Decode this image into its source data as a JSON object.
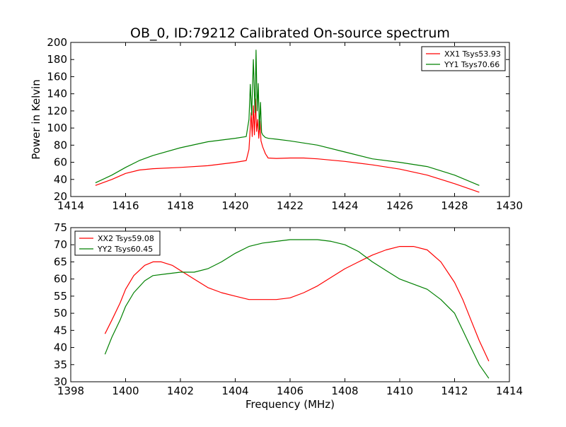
{
  "figure": {
    "title": "OB_0, ID:79212 Calibrated On-source spectrum",
    "xlabel": "Frequency (MHz)",
    "colors": {
      "red": "#ff0000",
      "green": "#008000",
      "axis": "#000000",
      "background": "#ffffff"
    }
  },
  "chart_data": [
    {
      "type": "line",
      "title": "OB_0, ID:79212 Calibrated On-source spectrum",
      "xlabel": "",
      "ylabel": "Power in Kelvin",
      "xlim": [
        1414,
        1430
      ],
      "ylim": [
        20,
        200
      ],
      "xticks": [
        1414,
        1416,
        1418,
        1420,
        1422,
        1424,
        1426,
        1428,
        1430
      ],
      "yticks": [
        20,
        40,
        60,
        80,
        100,
        120,
        140,
        160,
        180,
        200
      ],
      "grid": false,
      "legend": "top-right",
      "series": [
        {
          "name": "XX1 Tsys53.93",
          "color": "#ff0000",
          "x": [
            1414.9,
            1415.5,
            1416.0,
            1416.5,
            1417.0,
            1418.0,
            1419.0,
            1420.0,
            1420.4,
            1420.5,
            1420.58,
            1420.62,
            1420.66,
            1420.7,
            1420.74,
            1420.78,
            1420.82,
            1420.86,
            1420.9,
            1420.94,
            1421.0,
            1421.1,
            1421.2,
            1421.5,
            1422.0,
            1422.5,
            1423.0,
            1424.0,
            1425.0,
            1426.0,
            1427.0,
            1428.0,
            1428.9
          ],
          "y": [
            33,
            40,
            47,
            51,
            52.5,
            54,
            56,
            60,
            62,
            75,
            118,
            90,
            126,
            92,
            134,
            96,
            110,
            88,
            108,
            85,
            78,
            70,
            65,
            64.5,
            65,
            65,
            64,
            61,
            57,
            52,
            45,
            35,
            25
          ]
        },
        {
          "name": "YY1 Tsys70.66",
          "color": "#008000",
          "x": [
            1414.9,
            1415.5,
            1416.0,
            1416.5,
            1417.0,
            1418.0,
            1419.0,
            1420.0,
            1420.4,
            1420.5,
            1420.55,
            1420.6,
            1420.66,
            1420.72,
            1420.76,
            1420.8,
            1420.84,
            1420.88,
            1420.92,
            1420.96,
            1421.0,
            1421.1,
            1421.2,
            1421.5,
            1422.0,
            1423.0,
            1424.0,
            1425.0,
            1426.0,
            1427.0,
            1428.0,
            1428.9
          ],
          "y": [
            36,
            45,
            54,
            62,
            68,
            77,
            84,
            88,
            90,
            110,
            151,
            115,
            180,
            118,
            191,
            120,
            152,
            98,
            130,
            95,
            92,
            89,
            88,
            87,
            85,
            80,
            72,
            64,
            60,
            55,
            45,
            33
          ]
        }
      ]
    },
    {
      "type": "line",
      "title": "",
      "xlabel": "Frequency (MHz)",
      "ylabel": "",
      "xlim": [
        1398,
        1414
      ],
      "ylim": [
        30,
        75
      ],
      "xticks": [
        1398,
        1400,
        1402,
        1404,
        1406,
        1408,
        1410,
        1412,
        1414
      ],
      "yticks": [
        30,
        35,
        40,
        45,
        50,
        55,
        60,
        65,
        70,
        75
      ],
      "grid": false,
      "legend": "top-left",
      "series": [
        {
          "name": "XX2 Tsys59.08",
          "color": "#ff0000",
          "x": [
            1399.25,
            1399.5,
            1399.8,
            1400.0,
            1400.3,
            1400.7,
            1401.0,
            1401.3,
            1401.7,
            1402.0,
            1402.5,
            1403.0,
            1403.5,
            1404.0,
            1404.5,
            1405.0,
            1405.5,
            1406.0,
            1406.5,
            1407.0,
            1407.5,
            1408.0,
            1408.5,
            1409.0,
            1409.5,
            1410.0,
            1410.5,
            1411.0,
            1411.5,
            1412.0,
            1412.3,
            1412.6,
            1412.9,
            1413.25
          ],
          "y": [
            44,
            48,
            53,
            57,
            61,
            64,
            65,
            65,
            64,
            62.5,
            60,
            57.5,
            56,
            55,
            54,
            54,
            54,
            54.5,
            56,
            58,
            60.5,
            63,
            65,
            67,
            68.5,
            69.5,
            69.5,
            68.5,
            65,
            59,
            54,
            48,
            42,
            36
          ]
        },
        {
          "name": "YY2 Tsys60.45",
          "color": "#008000",
          "x": [
            1399.25,
            1399.5,
            1399.8,
            1400.0,
            1400.3,
            1400.7,
            1401.0,
            1401.5,
            1402.0,
            1402.5,
            1403.0,
            1403.5,
            1404.0,
            1404.5,
            1405.0,
            1405.5,
            1406.0,
            1406.5,
            1407.0,
            1407.5,
            1408.0,
            1408.5,
            1409.0,
            1409.5,
            1410.0,
            1410.5,
            1411.0,
            1411.5,
            1412.0,
            1412.3,
            1412.6,
            1412.9,
            1413.25
          ],
          "y": [
            38,
            43,
            48,
            52,
            56,
            59.5,
            61,
            61.5,
            62,
            62,
            63,
            65,
            67.5,
            69.5,
            70.5,
            71,
            71.5,
            71.5,
            71.5,
            71,
            70,
            68,
            65,
            62.5,
            60,
            58.5,
            57,
            54,
            50,
            45,
            40,
            35,
            31
          ]
        }
      ]
    }
  ]
}
